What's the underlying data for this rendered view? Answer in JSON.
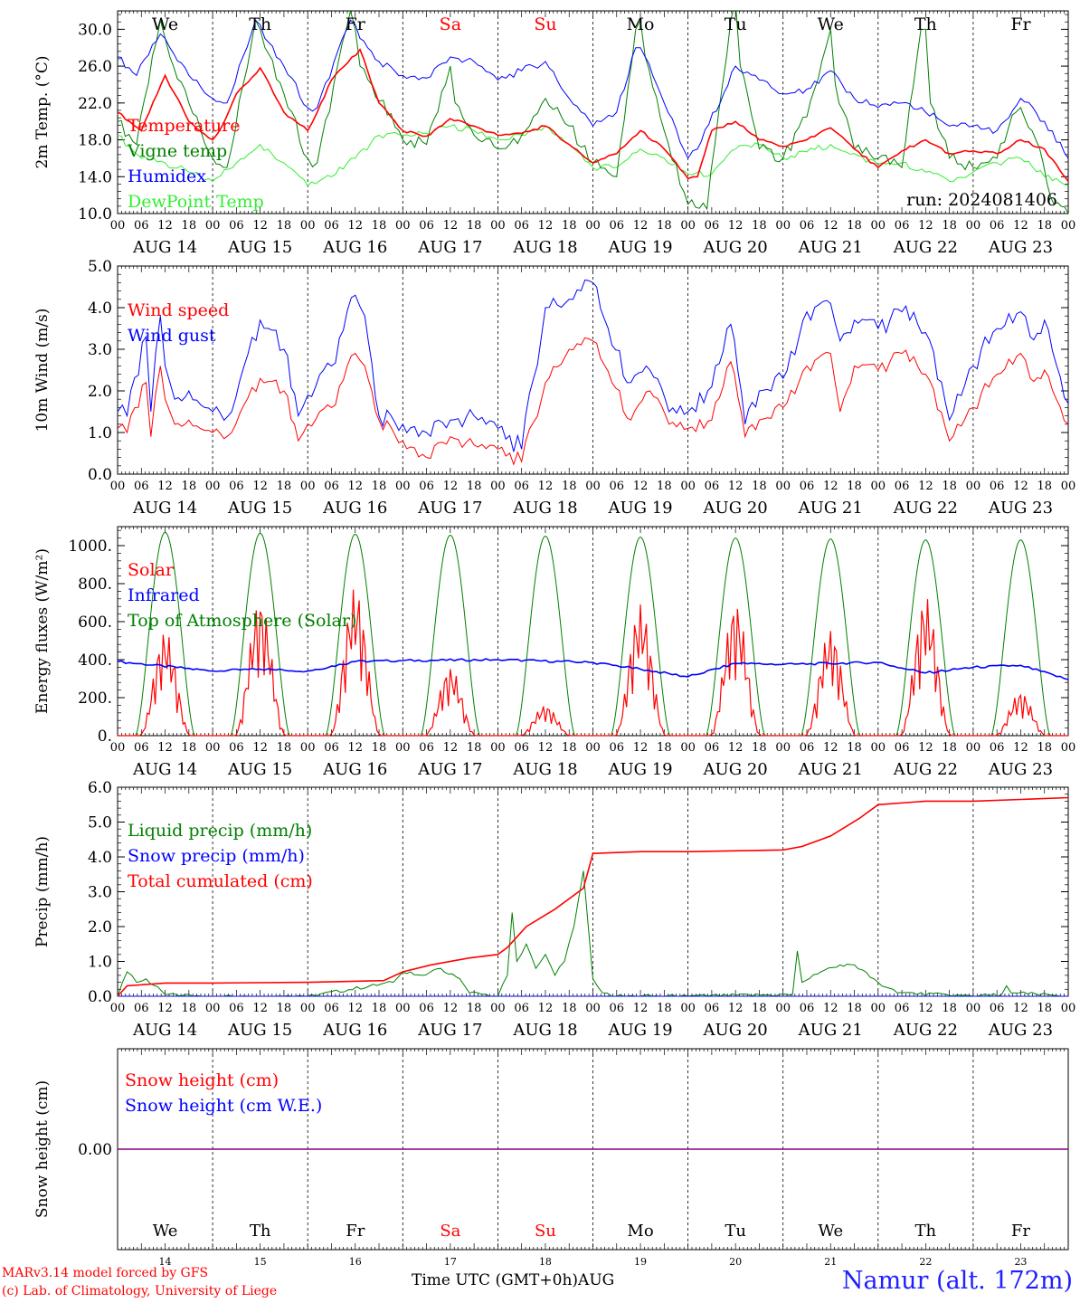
{
  "run_label": "run: 2024081406",
  "x_axis_title": "Time UTC (GMT+0h)",
  "month": "AUG",
  "credit_line1": "MARv3.14 model forced by GFS",
  "credit_line2": "(c) Lab. of Climatology, University of Liege",
  "station": "Namur (alt. 172m)",
  "colors": {
    "red": "#ff0000",
    "green": "#008000",
    "blue": "#0000ff",
    "lightgreen": "#33ee33",
    "purple": "#800080",
    "weekend": "#ff0000"
  },
  "chart_data": [
    {
      "type": "line",
      "ylabel": "2m Temp. (°C)",
      "ylim": [
        10,
        32
      ],
      "yticks": [
        "10.0",
        "14.0",
        "18.0",
        "22.0",
        "26.0",
        "30.0"
      ],
      "ytick_values": [
        10,
        14,
        18,
        22,
        26,
        30
      ],
      "x_unit": "day offset from 2024-08-14 00 UTC",
      "day_names": [
        "We",
        "Th",
        "Fr",
        "Sa",
        "Su",
        "Mo",
        "Tu",
        "We",
        "Th",
        "Fr"
      ],
      "series": [
        {
          "name": "Temperature",
          "color": "red",
          "x": [
            0,
            0.25,
            0.5,
            0.6,
            0.75,
            1,
            1.1,
            1.25,
            1.5,
            1.6,
            1.75,
            2,
            2.1,
            2.25,
            2.55,
            2.75,
            3,
            3.25,
            3.5,
            3.75,
            4,
            4.25,
            4.5,
            4.75,
            5,
            5.25,
            5.5,
            5.75,
            6,
            6.1,
            6.25,
            6.5,
            6.75,
            7,
            7.25,
            7.5,
            7.75,
            8,
            8.25,
            8.5,
            8.75,
            9,
            9.25,
            9.5,
            9.75,
            10
          ],
          "values": [
            21,
            19,
            25,
            23,
            20,
            18,
            19.5,
            23,
            25.8,
            24,
            21,
            19,
            21,
            24.5,
            27.8,
            22,
            19,
            18.4,
            20.3,
            19.5,
            18.5,
            18.7,
            19.5,
            17.5,
            15.5,
            16.5,
            19,
            17,
            13.8,
            14,
            19,
            20,
            18,
            17.3,
            18,
            19.3,
            17,
            15,
            16.8,
            18,
            16.5,
            16.8,
            16.5,
            18,
            17,
            13.5
          ]
        },
        {
          "name": "Vigne temp",
          "color": "green",
          "x": [
            0,
            0.2,
            0.45,
            0.5,
            0.55,
            0.75,
            1,
            1.15,
            1.45,
            1.5,
            1.55,
            1.75,
            2,
            2.1,
            2.45,
            2.5,
            2.55,
            3,
            3.25,
            3.45,
            3.5,
            3.55,
            3.75,
            4,
            4.25,
            4.5,
            4.75,
            5,
            5.25,
            5.45,
            5.5,
            5.55,
            5.75,
            6,
            6.2,
            6.45,
            6.5,
            6.55,
            6.75,
            7,
            7.25,
            7.45,
            7.5,
            7.55,
            7.75,
            8,
            8.25,
            8.45,
            8.5,
            8.55,
            8.75,
            9,
            9.25,
            9.45,
            9.5,
            9.7,
            9.85,
            10
          ],
          "values": [
            20,
            17.5,
            31,
            29,
            27,
            22,
            16,
            15,
            31,
            30,
            28,
            23,
            16,
            15.5,
            32,
            30,
            26,
            18,
            17.5,
            24,
            26,
            22,
            18.5,
            17,
            18.5,
            22.5,
            19.5,
            15.5,
            14,
            30,
            31,
            27,
            19,
            11,
            10.5,
            31,
            33,
            26,
            17,
            16,
            20.5,
            28,
            30,
            24,
            17,
            16,
            15,
            30,
            30,
            22,
            16,
            15,
            16,
            21,
            21.5,
            17,
            11,
            10
          ]
        },
        {
          "name": "Humidex",
          "color": "blue",
          "x": [
            0,
            0.2,
            0.45,
            0.5,
            0.55,
            0.75,
            1,
            1.15,
            1.45,
            1.5,
            1.55,
            1.75,
            2,
            2.1,
            2.45,
            2.5,
            2.55,
            2.75,
            3,
            3.25,
            3.5,
            3.75,
            4,
            4.25,
            4.5,
            4.75,
            5,
            5.25,
            5.45,
            5.5,
            5.55,
            5.75,
            6,
            6.1,
            6.5,
            6.75,
            7,
            7.25,
            7.5,
            7.75,
            8,
            8.25,
            8.5,
            8.75,
            9,
            9.25,
            9.5,
            9.75,
            10
          ],
          "values": [
            27,
            25,
            29.5,
            29,
            28,
            25,
            22.5,
            22,
            31,
            30.5,
            29,
            26,
            21.5,
            21.5,
            31,
            30.5,
            29,
            26.5,
            25,
            24.7,
            27,
            26.5,
            24.5,
            25.5,
            26.5,
            22.5,
            19.5,
            21,
            28,
            28,
            27,
            22,
            16,
            17,
            26,
            24.5,
            23,
            23.5,
            25.5,
            22.5,
            21.5,
            22,
            21,
            19.5,
            19.5,
            19,
            22.5,
            20,
            16
          ]
        },
        {
          "name": "DewPoint Temp",
          "color": "lightgreen",
          "x": [
            0,
            0.25,
            0.5,
            0.75,
            1,
            1.25,
            1.5,
            1.75,
            2,
            2.25,
            2.5,
            2.75,
            3,
            3.25,
            3.5,
            3.75,
            4,
            4.25,
            4.5,
            4.75,
            5,
            5.25,
            5.5,
            5.75,
            6,
            6.25,
            6.5,
            6.75,
            7,
            7.25,
            7.5,
            7.75,
            8,
            8.25,
            8.5,
            8.75,
            9,
            9.25,
            9.5,
            9.75,
            10
          ],
          "values": [
            18.5,
            16,
            15.5,
            14.5,
            13.5,
            15.5,
            17.5,
            15.5,
            13,
            14,
            16,
            18.5,
            18.5,
            18.7,
            19.5,
            19,
            18,
            18.5,
            19.5,
            17.5,
            15,
            15,
            17,
            16,
            14.3,
            14.3,
            17,
            17.5,
            16,
            16.7,
            17.5,
            16.5,
            15.3,
            15.5,
            14.5,
            13.5,
            14.5,
            15.5,
            16,
            14,
            13
          ]
        }
      ]
    },
    {
      "type": "line",
      "ylabel": "10m Wind (m/s)",
      "ylim": [
        0,
        5
      ],
      "yticks": [
        "0.0",
        "1.0",
        "2.0",
        "3.0",
        "4.0",
        "5.0"
      ],
      "ytick_values": [
        0,
        1,
        2,
        3,
        4,
        5
      ],
      "series": [
        {
          "name": "Wind speed",
          "color": "red",
          "x": [
            0,
            0.1,
            0.3,
            0.35,
            0.45,
            0.5,
            0.6,
            0.75,
            1,
            1.2,
            1.5,
            1.75,
            1.9,
            2,
            2.25,
            2.5,
            2.6,
            2.75,
            3,
            3.25,
            3.5,
            3.75,
            4,
            4.25,
            4.5,
            4.75,
            5,
            5.2,
            5.4,
            5.6,
            5.8,
            6,
            6.25,
            6.45,
            6.6,
            6.75,
            7,
            7.25,
            7.5,
            7.6,
            7.75,
            8,
            8.25,
            8.5,
            8.75,
            9,
            9.25,
            9.5,
            9.6,
            9.75,
            10
          ],
          "values": [
            1.1,
            1.0,
            2.2,
            0.9,
            2.6,
            1.8,
            1.2,
            1.3,
            1.0,
            1.0,
            2.3,
            2.0,
            0.8,
            1.2,
            1.6,
            2.9,
            2.6,
            1.3,
            0.8,
            0.4,
            0.9,
            0.7,
            0.6,
            0.3,
            2.2,
            3.0,
            3.2,
            2.2,
            1.3,
            2.0,
            1.2,
            1.1,
            1.3,
            2.7,
            0.9,
            1.3,
            1.6,
            2.6,
            2.9,
            1.5,
            2.6,
            2.5,
            2.9,
            2.4,
            0.8,
            1.6,
            2.4,
            2.9,
            2.3,
            2.5,
            1.2
          ]
        },
        {
          "name": "Wind gust",
          "color": "blue",
          "x": [
            0,
            0.1,
            0.3,
            0.35,
            0.45,
            0.5,
            0.6,
            0.75,
            1,
            1.2,
            1.5,
            1.75,
            1.9,
            2,
            2.25,
            2.5,
            2.6,
            2.75,
            3,
            3.25,
            3.5,
            3.75,
            4,
            4.25,
            4.5,
            4.75,
            5,
            5.2,
            5.4,
            5.6,
            5.8,
            6,
            6.25,
            6.45,
            6.6,
            6.75,
            7,
            7.25,
            7.5,
            7.6,
            7.75,
            8,
            8.25,
            8.5,
            8.75,
            9,
            9.25,
            9.5,
            9.6,
            9.75,
            10
          ],
          "values": [
            1.5,
            1.4,
            3.3,
            1.5,
            3.8,
            2.6,
            1.8,
            2.0,
            1.5,
            1.5,
            3.7,
            3.0,
            1.4,
            1.9,
            2.6,
            4.3,
            3.8,
            1.4,
            1.2,
            1.0,
            1.3,
            1.4,
            1.1,
            0.6,
            4.0,
            4.2,
            4.6,
            3.1,
            2.2,
            2.5,
            1.5,
            1.5,
            2.1,
            3.6,
            1.2,
            2.0,
            2.3,
            3.9,
            4.1,
            3.2,
            3.7,
            3.5,
            3.9,
            3.4,
            1.3,
            2.6,
            3.5,
            3.9,
            3.3,
            3.7,
            1.7
          ]
        }
      ]
    },
    {
      "type": "line",
      "ylabel": "Energy fluxes (W/m²)",
      "ylim": [
        0,
        1100
      ],
      "yticks": [
        "0.",
        "200.",
        "400.",
        "600.",
        "800.",
        "1000."
      ],
      "ytick_values": [
        0,
        200,
        400,
        600,
        800,
        1000
      ],
      "series": [
        {
          "name": "Solar",
          "color": "red",
          "peaks": [
            550,
            720,
            780,
            360,
            160,
            690,
            700,
            560,
            730,
            230
          ]
        },
        {
          "name": "Infrared",
          "color": "blue",
          "x": [
            0,
            1,
            1.5,
            2,
            2.5,
            3,
            4,
            5,
            5.5,
            6,
            6.5,
            7,
            8,
            8.5,
            9,
            9.5,
            10
          ],
          "values": [
            390,
            340,
            350,
            340,
            390,
            395,
            400,
            385,
            350,
            310,
            380,
            375,
            385,
            330,
            360,
            370,
            295
          ]
        },
        {
          "name": "Top of Atmosphere (Solar)",
          "color": "green",
          "peaks": [
            1070,
            1065,
            1060,
            1055,
            1050,
            1045,
            1040,
            1035,
            1030,
            1030
          ]
        }
      ]
    },
    {
      "type": "line",
      "ylabel": "Precip (mm/h)",
      "ylim": [
        0,
        6
      ],
      "yticks": [
        "0.0",
        "1.0",
        "2.0",
        "3.0",
        "4.0",
        "5.0",
        "6.0"
      ],
      "ytick_values": [
        0,
        1,
        2,
        3,
        4,
        5,
        6
      ],
      "series": [
        {
          "name": "Liquid precip (mm/h)",
          "color": "green",
          "x": [
            0,
            0.1,
            0.2,
            0.3,
            0.5,
            1,
            2,
            2.9,
            3.0,
            3.2,
            3.4,
            3.6,
            3.7,
            4,
            4.1,
            4.15,
            4.2,
            4.3,
            4.4,
            4.5,
            4.6,
            4.7,
            4.8,
            4.9,
            5.0,
            5.1,
            5.2,
            6,
            7.1,
            7.15,
            7.2,
            7.4,
            7.6,
            7.75,
            8,
            8.2,
            9,
            9.3,
            9.35,
            9.4,
            10
          ],
          "values": [
            0,
            0.7,
            0.4,
            0.5,
            0.05,
            0,
            0,
            0.4,
            0.7,
            0.6,
            0.8,
            0.5,
            0.1,
            0,
            0.6,
            2.4,
            1.0,
            1.5,
            0.8,
            1.2,
            0.6,
            1.0,
            2.0,
            3.6,
            0.5,
            0.1,
            0,
            0,
            0.05,
            1.3,
            0.4,
            0.7,
            0.9,
            0.9,
            0.4,
            0.1,
            0,
            0.05,
            0.3,
            0.1,
            0
          ]
        },
        {
          "name": "Snow precip (mm/h)",
          "color": "blue",
          "x": [
            0,
            10
          ],
          "values": [
            0,
            0
          ]
        },
        {
          "name": "Total cumulated (cm)",
          "color": "red",
          "x": [
            0,
            0.1,
            0.5,
            1,
            2,
            2.8,
            3.0,
            3.3,
            3.7,
            4.0,
            4.1,
            4.3,
            4.6,
            4.9,
            5.0,
            5.5,
            6,
            7,
            7.2,
            7.5,
            7.8,
            8,
            8.5,
            9,
            9.5,
            10
          ],
          "values": [
            0,
            0.3,
            0.38,
            0.38,
            0.4,
            0.45,
            0.7,
            0.9,
            1.1,
            1.2,
            1.4,
            2.0,
            2.5,
            3.1,
            4.1,
            4.15,
            4.15,
            4.2,
            4.3,
            4.6,
            5.1,
            5.5,
            5.6,
            5.6,
            5.65,
            5.7
          ]
        }
      ]
    },
    {
      "type": "line",
      "ylabel": "Snow height (cm)",
      "yticks": [
        "0.00"
      ],
      "series": [
        {
          "name": "Snow height (cm)",
          "color": "red",
          "x": [
            0,
            10
          ],
          "values": [
            0,
            0
          ]
        },
        {
          "name": "Snow height (cm W.E.)",
          "color": "blue",
          "x": [
            0,
            10
          ],
          "values": [
            0,
            0
          ]
        }
      ],
      "day_numbers": [
        "14",
        "15",
        "16",
        "17",
        "18",
        "19",
        "20",
        "21",
        "22",
        "23"
      ]
    }
  ],
  "hour_ticks": [
    "00",
    "06",
    "12",
    "18"
  ],
  "date_labels": [
    "AUG 14",
    "AUG 15",
    "AUG 16",
    "AUG 17",
    "AUG 18",
    "AUG 19",
    "AUG 20",
    "AUG 21",
    "AUG 22",
    "AUG 23"
  ]
}
